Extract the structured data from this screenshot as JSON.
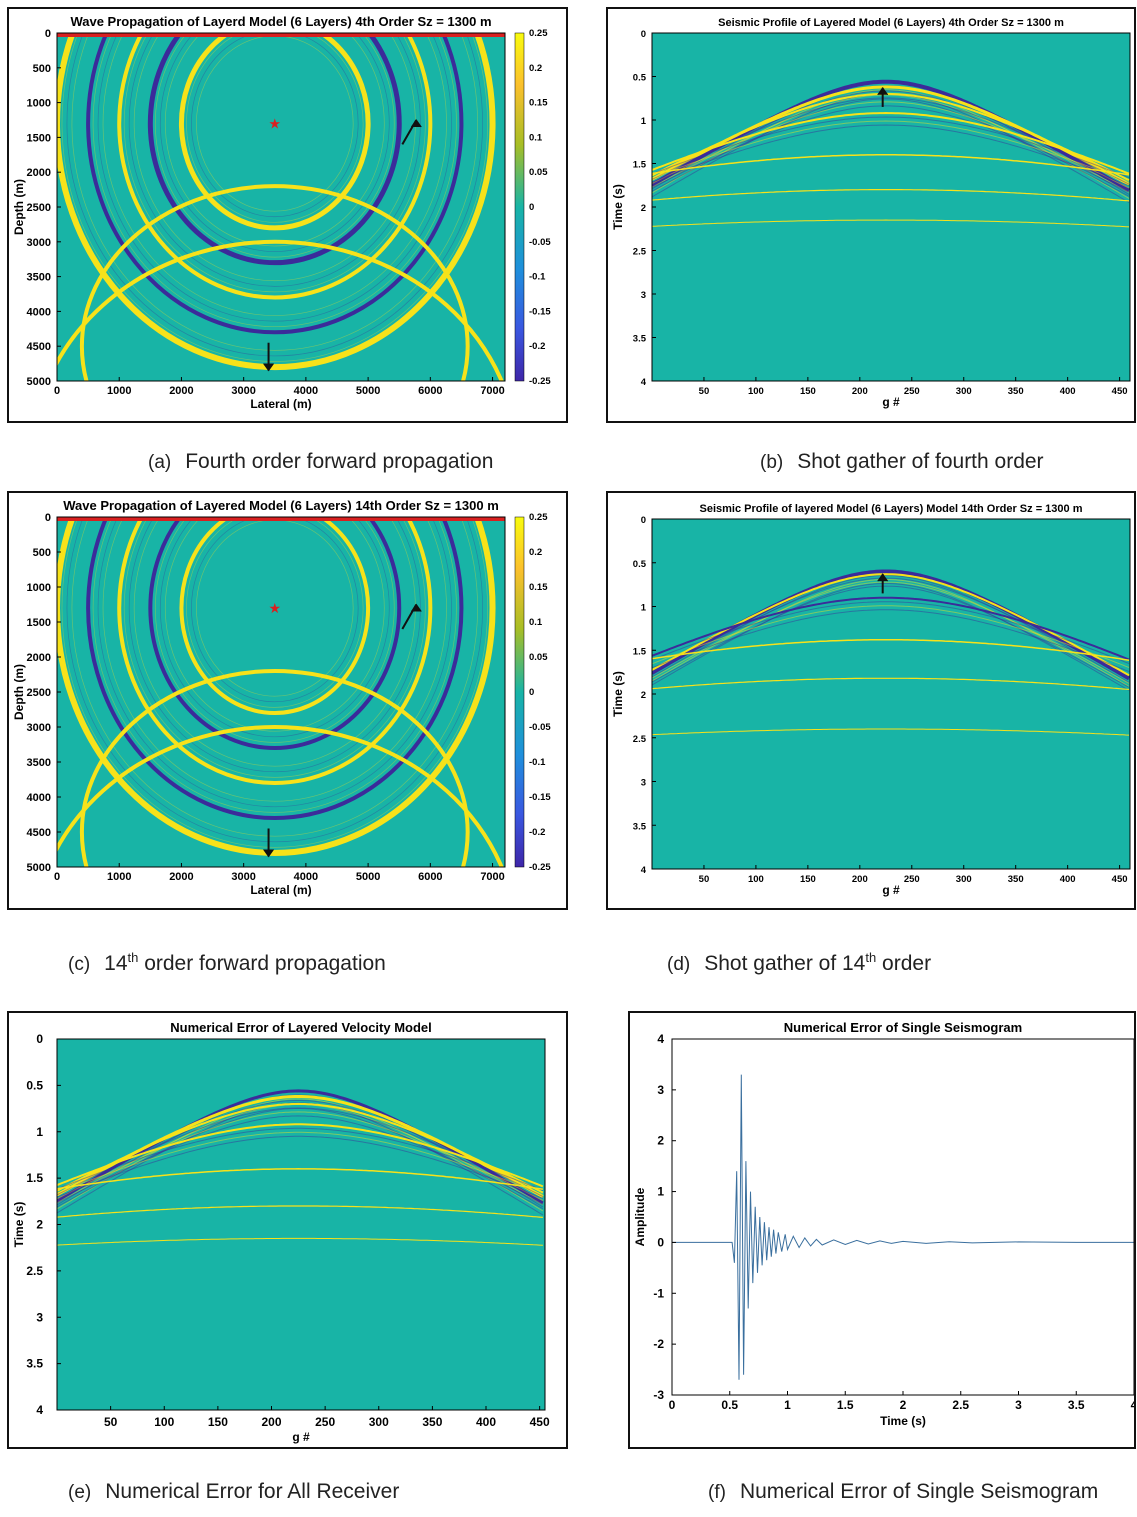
{
  "colors": {
    "background": "#18b4a6",
    "yellow": "#f7e21a",
    "navy": "#3b2b9a",
    "red": "#d92020",
    "line": "#3a6f9e"
  },
  "captions": {
    "a": {
      "label": "(a)",
      "text": "Fourth order forward propagation"
    },
    "b": {
      "label": "(b)",
      "text": "Shot gather of fourth order"
    },
    "c": {
      "label": "(c)",
      "pre": "14",
      "sup": "th",
      "post": " order forward propagation"
    },
    "d": {
      "label": "(d)",
      "pre": "Shot gather of 14",
      "sup": "th",
      "post": " order"
    },
    "e": {
      "label": "(e)",
      "text": "Numerical Error for All Receiver"
    },
    "f": {
      "label": "(f)",
      "text": "Numerical Error of Single Seismogram"
    }
  },
  "chart_data": [
    {
      "id": "a",
      "type": "heatmap",
      "title": "Wave Propagation of Layerd Model (6 Layers) 4th Order Sz = 1300 m",
      "xlabel": "Lateral (m)",
      "ylabel": "Depth (m)",
      "xlim": [
        0,
        7200
      ],
      "ylim": [
        0,
        5000
      ],
      "xticks": [
        0,
        1000,
        2000,
        3000,
        4000,
        5000,
        6000,
        7000
      ],
      "yticks": [
        0,
        500,
        1000,
        1500,
        2000,
        2500,
        3000,
        3500,
        4000,
        4500,
        5000
      ],
      "colorbar": {
        "ticks": [
          0.25,
          0.2,
          0.15,
          0.1,
          0.05,
          0,
          -0.05,
          -0.1,
          -0.15,
          -0.2,
          -0.25
        ],
        "range": [
          -0.25,
          0.25
        ]
      },
      "source": {
        "x": 3500,
        "y": 1300
      },
      "wavefronts": [
        {
          "cx": 3500,
          "cy": 1300,
          "r": 1500,
          "color": "yellow",
          "width": 5
        },
        {
          "cx": 3500,
          "cy": 1300,
          "r": 2000,
          "color": "navy",
          "width": 5
        },
        {
          "cx": 3500,
          "cy": 1300,
          "r": 2500,
          "color": "yellow",
          "width": 4
        },
        {
          "cx": 3500,
          "cy": 1300,
          "r": 3000,
          "color": "navy",
          "width": 4
        },
        {
          "cx": 3500,
          "cy": 1300,
          "r": 3500,
          "color": "yellow",
          "width": 6
        }
      ],
      "arrows": [
        {
          "x": 3400,
          "y1": 4450,
          "y2": 4850
        },
        {
          "x": 5550,
          "y1": 1600,
          "y2": 1250
        }
      ]
    },
    {
      "id": "b",
      "type": "heatmap",
      "title": "Seismic Profile of Layered Model (6 Layers) 4th Order Sz = 1300 m",
      "xlabel": "g #",
      "ylabel": "Time (s)",
      "xlim": [
        0,
        460
      ],
      "ylim": [
        0,
        4
      ],
      "xticks": [
        50,
        100,
        150,
        200,
        250,
        300,
        350,
        400,
        450
      ],
      "yticks": [
        0,
        0.5,
        1,
        1.5,
        2,
        2.5,
        3,
        3.5,
        4
      ],
      "events": [
        {
          "apex_x": 225,
          "t0": 0.56,
          "v": 1.7,
          "color": "navy",
          "width": 4
        },
        {
          "apex_x": 225,
          "t0": 0.62,
          "v": 1.8,
          "color": "yellow",
          "width": 3
        },
        {
          "apex_x": 225,
          "t0": 0.7,
          "v": 1.9,
          "color": "yellow",
          "width": 2
        },
        {
          "apex_x": 225,
          "t0": 0.92,
          "v": 2.2,
          "color": "yellow",
          "width": 2
        },
        {
          "apex_x": 225,
          "t0": 1.4,
          "v": 3.5,
          "color": "yellow",
          "width": 1.5
        },
        {
          "apex_x": 225,
          "t0": 1.8,
          "v": 4.2,
          "color": "yellow",
          "width": 1.2
        },
        {
          "apex_x": 225,
          "t0": 2.15,
          "v": 5,
          "color": "yellow",
          "width": 1
        }
      ],
      "arrow": {
        "x": 222,
        "t1": 0.85,
        "t2": 0.63
      }
    },
    {
      "id": "c",
      "type": "heatmap",
      "title": "Wave Propagation of Layered Model (6 Layers) 14th Order Sz = 1300 m",
      "xlabel": "Lateral (m)",
      "ylabel": "Depth (m)",
      "xlim": [
        0,
        7200
      ],
      "ylim": [
        0,
        5000
      ],
      "xticks": [
        0,
        1000,
        2000,
        3000,
        4000,
        5000,
        6000,
        7000
      ],
      "yticks": [
        0,
        500,
        1000,
        1500,
        2000,
        2500,
        3000,
        3500,
        4000,
        4500,
        5000
      ],
      "colorbar": {
        "ticks": [
          0.25,
          0.2,
          0.15,
          0.1,
          0.05,
          0,
          -0.05,
          -0.1,
          -0.15,
          -0.2,
          -0.25
        ],
        "range": [
          -0.25,
          0.25
        ]
      },
      "source": {
        "x": 3500,
        "y": 1300
      },
      "wavefronts": [
        {
          "cx": 3500,
          "cy": 1300,
          "r": 1500,
          "color": "yellow",
          "width": 4
        },
        {
          "cx": 3500,
          "cy": 1300,
          "r": 2000,
          "color": "navy",
          "width": 4
        },
        {
          "cx": 3500,
          "cy": 1300,
          "r": 2500,
          "color": "yellow",
          "width": 4
        },
        {
          "cx": 3500,
          "cy": 1300,
          "r": 3000,
          "color": "navy",
          "width": 4
        },
        {
          "cx": 3500,
          "cy": 1300,
          "r": 3500,
          "color": "yellow",
          "width": 6
        }
      ],
      "arrows": [
        {
          "x": 3400,
          "y1": 4450,
          "y2": 4850
        },
        {
          "x": 5550,
          "y1": 1600,
          "y2": 1250
        }
      ]
    },
    {
      "id": "d",
      "type": "heatmap",
      "title": "Seismic Profile of layered Model (6 Layers) Model 14th Order Sz = 1300 m",
      "xlabel": "g #",
      "ylabel": "Time (s)",
      "xlim": [
        0,
        460
      ],
      "ylim": [
        0,
        4
      ],
      "xticks": [
        50,
        100,
        150,
        200,
        250,
        300,
        350,
        400,
        450
      ],
      "yticks": [
        0,
        0.5,
        1,
        1.5,
        2,
        2.5,
        3,
        3.5,
        4
      ],
      "events": [
        {
          "apex_x": 225,
          "t0": 0.6,
          "v": 1.7,
          "color": "navy",
          "width": 4
        },
        {
          "apex_x": 225,
          "t0": 0.63,
          "v": 1.75,
          "color": "yellow",
          "width": 2
        },
        {
          "apex_x": 225,
          "t0": 0.9,
          "v": 2.2,
          "color": "navy",
          "width": 2
        },
        {
          "apex_x": 225,
          "t0": 1.38,
          "v": 3.5,
          "color": "yellow",
          "width": 1.5
        },
        {
          "apex_x": 225,
          "t0": 1.82,
          "v": 4.2,
          "color": "yellow",
          "width": 1.2
        },
        {
          "apex_x": 225,
          "t0": 2.4,
          "v": 5,
          "color": "yellow",
          "width": 1
        }
      ],
      "arrow": {
        "x": 222,
        "t1": 0.85,
        "t2": 0.63
      }
    },
    {
      "id": "e",
      "type": "heatmap",
      "title": "Numerical Error of Layered Velocity Model",
      "xlabel": "g #",
      "ylabel": "Time (s)",
      "xlim": [
        0,
        455
      ],
      "ylim": [
        0,
        4
      ],
      "xticks": [
        50,
        100,
        150,
        200,
        250,
        300,
        350,
        400,
        450
      ],
      "yticks": [
        0,
        0.5,
        1,
        1.5,
        2,
        2.5,
        3,
        3.5,
        4
      ],
      "events": [
        {
          "apex_x": 225,
          "t0": 0.56,
          "v": 1.7,
          "color": "navy",
          "width": 3
        },
        {
          "apex_x": 225,
          "t0": 0.62,
          "v": 1.8,
          "color": "yellow",
          "width": 3
        },
        {
          "apex_x": 225,
          "t0": 0.7,
          "v": 1.9,
          "color": "yellow",
          "width": 2
        },
        {
          "apex_x": 225,
          "t0": 0.92,
          "v": 2.2,
          "color": "yellow",
          "width": 2
        },
        {
          "apex_x": 225,
          "t0": 1.4,
          "v": 3.5,
          "color": "yellow",
          "width": 1.5
        },
        {
          "apex_x": 225,
          "t0": 1.8,
          "v": 4.2,
          "color": "yellow",
          "width": 1.2
        },
        {
          "apex_x": 225,
          "t0": 2.15,
          "v": 5,
          "color": "yellow",
          "width": 1
        }
      ]
    },
    {
      "id": "f",
      "type": "line",
      "title": "Numerical Error of Single Seismogram",
      "xlabel": "Time (s)",
      "ylabel": "Amplitude",
      "xlim": [
        0,
        4
      ],
      "ylim": [
        -3,
        4
      ],
      "xticks": [
        0,
        0.5,
        1,
        1.5,
        2,
        2.5,
        3,
        3.5,
        4
      ],
      "yticks": [
        -3,
        -2,
        -1,
        0,
        1,
        2,
        3,
        4
      ],
      "x": [
        0,
        0.52,
        0.54,
        0.56,
        0.58,
        0.6,
        0.62,
        0.64,
        0.66,
        0.68,
        0.7,
        0.72,
        0.74,
        0.76,
        0.78,
        0.8,
        0.82,
        0.84,
        0.86,
        0.88,
        0.9,
        0.92,
        0.95,
        0.98,
        1.0,
        1.05,
        1.1,
        1.15,
        1.2,
        1.25,
        1.3,
        1.4,
        1.5,
        1.6,
        1.7,
        1.8,
        1.9,
        2.0,
        2.2,
        2.4,
        2.6,
        3.0,
        3.5,
        4.0
      ],
      "y": [
        0,
        0,
        -0.4,
        1.4,
        -2.7,
        3.3,
        -2.6,
        1.6,
        -1.3,
        1.0,
        -0.8,
        0.7,
        -0.6,
        0.5,
        -0.45,
        0.4,
        -0.35,
        0.3,
        -0.28,
        0.25,
        -0.22,
        0.2,
        -0.18,
        0.16,
        -0.14,
        0.12,
        -0.1,
        0.09,
        -0.07,
        0.06,
        -0.05,
        0.05,
        -0.04,
        0.04,
        -0.03,
        0.03,
        -0.02,
        0.02,
        -0.02,
        0.015,
        -0.01,
        0.01,
        0,
        0
      ]
    }
  ]
}
